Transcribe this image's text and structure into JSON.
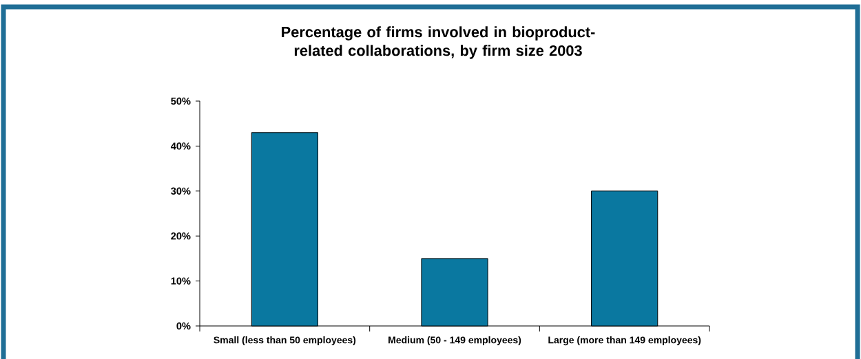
{
  "chart_data": {
    "type": "bar",
    "title": "Percentage of firms involved in bioproduct-related collaborations, by firm size 2003",
    "categories": [
      "Small (less than 50 employees)",
      "Medium (50 - 149 employees)",
      "Large (more than 149 employees)"
    ],
    "values": [
      43,
      15,
      30
    ],
    "color": "#0a78a0",
    "ylim": [
      0,
      50
    ],
    "yticks": [
      {
        "value": 0,
        "label": "0%"
      },
      {
        "value": 10,
        "label": "10%"
      },
      {
        "value": 20,
        "label": "20%"
      },
      {
        "value": 30,
        "label": "30%"
      },
      {
        "value": 40,
        "label": "40%"
      },
      {
        "value": 50,
        "label": "50%"
      }
    ],
    "grid": false
  }
}
